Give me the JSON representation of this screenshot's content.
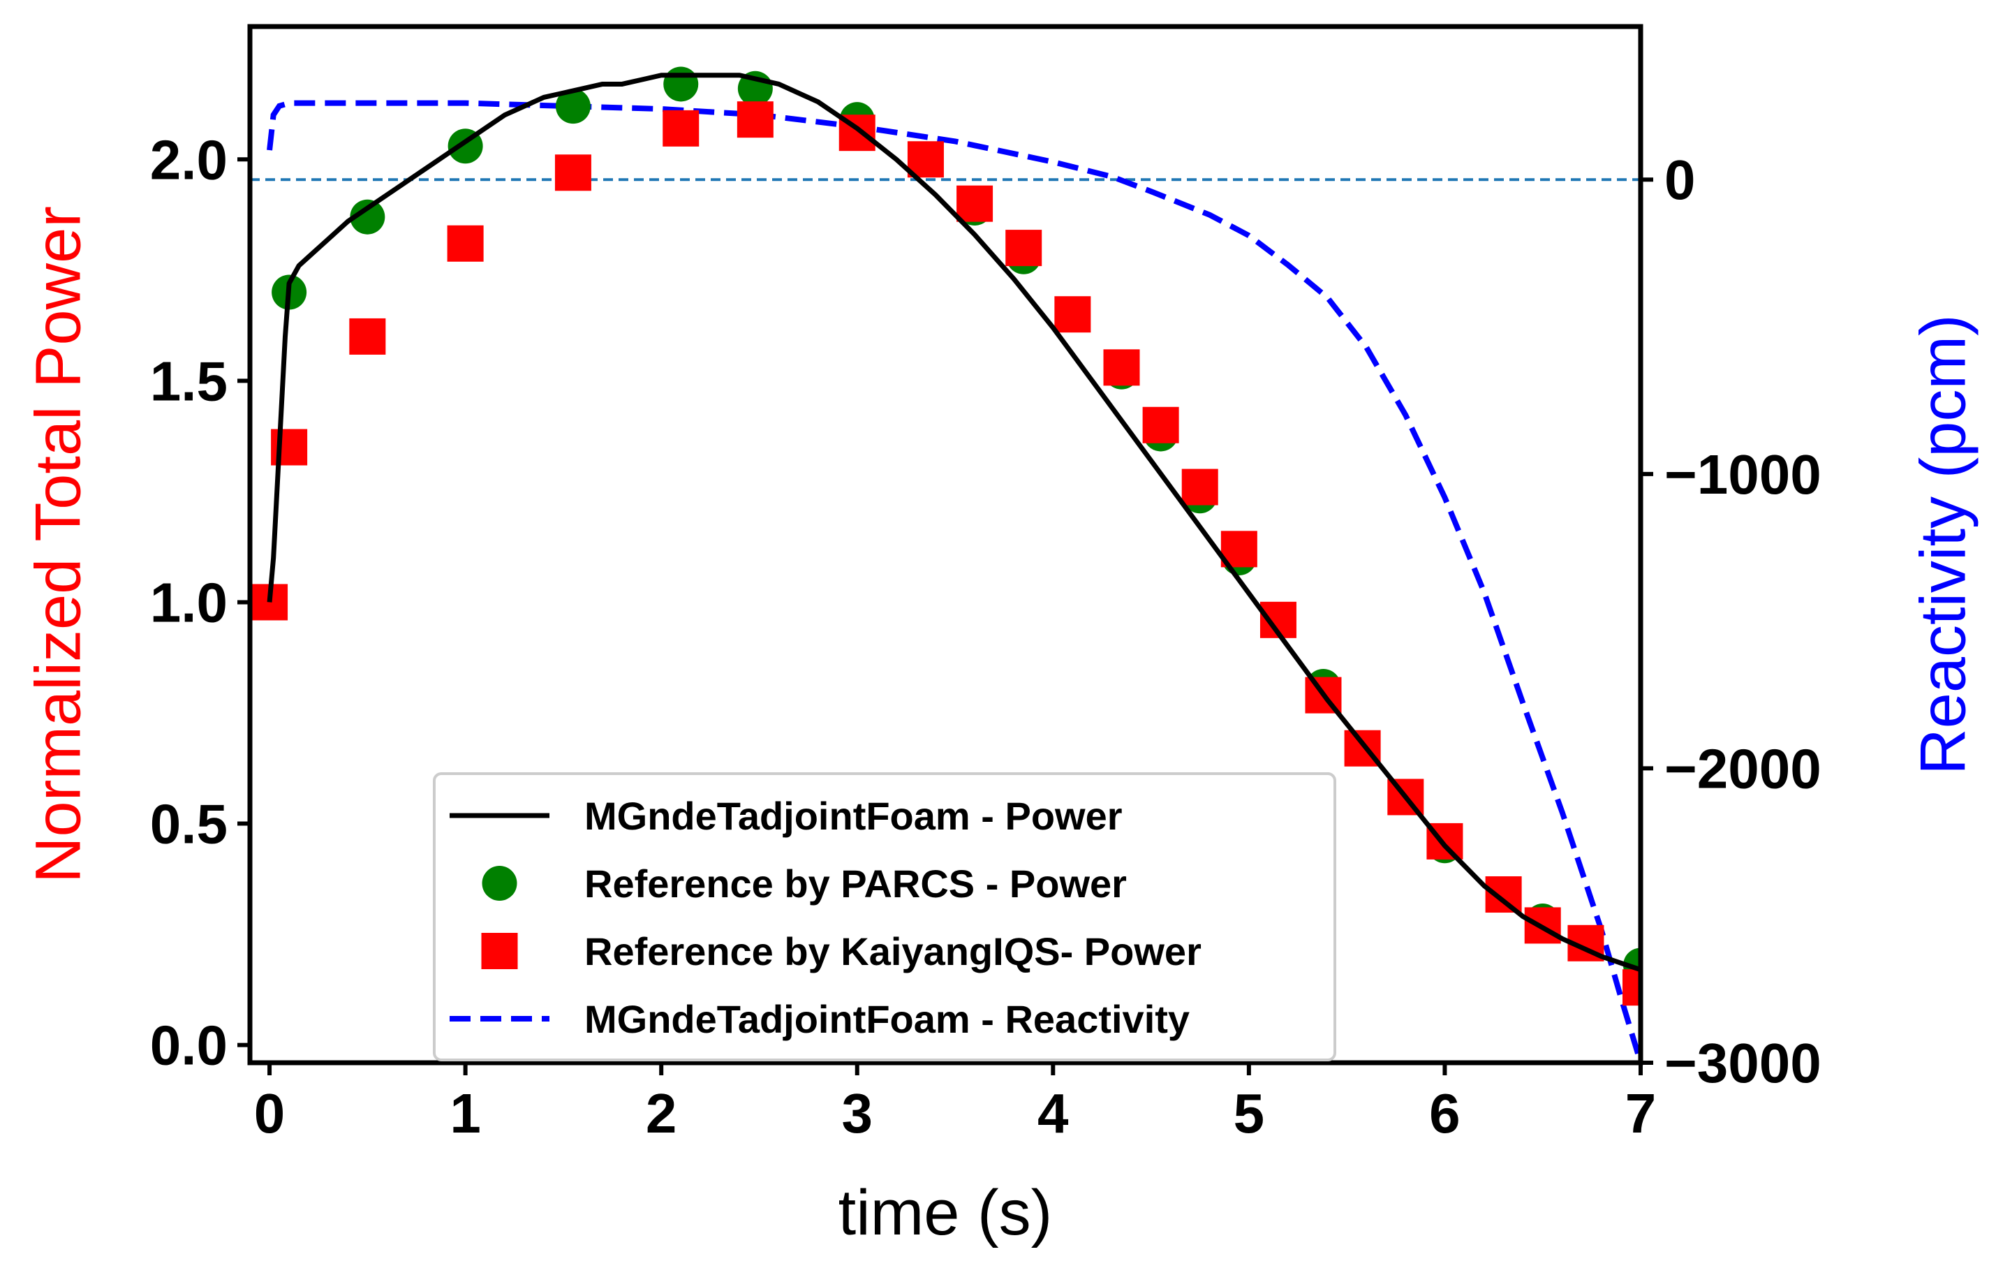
{
  "chart_data": {
    "type": "line",
    "xlabel": "time (s)",
    "ylabel_left": "Normalized Total Power",
    "ylabel_right": "Reactivity (pcm)",
    "xlim": [
      -0.1,
      7
    ],
    "ylim_left": [
      -0.04,
      2.3
    ],
    "ylim_right": [
      -3000,
      520
    ],
    "x_ticks": [
      "0",
      "1",
      "2",
      "3",
      "4",
      "5",
      "6",
      "7"
    ],
    "y_left_ticks": [
      "0.0",
      "0.5",
      "1.0",
      "1.5",
      "2.0"
    ],
    "y_right_ticks": [
      "0",
      "−1000",
      "−2000",
      "−3000"
    ],
    "legend_position": "lower-center",
    "colors": {
      "power_line": "#000000",
      "parcs": "#008000",
      "kaiyang": "#ff0000",
      "reactivity": "#0000ff",
      "zero_line": "#1f77b4",
      "left_label": "#ff0000",
      "right_label": "#0000ff"
    },
    "series": [
      {
        "name": "MGndeTadjointFoam - Power",
        "style": "solid-line",
        "axis": "left",
        "x": [
          0.0,
          0.02,
          0.05,
          0.08,
          0.1,
          0.15,
          0.2,
          0.3,
          0.4,
          0.5,
          0.6,
          0.7,
          0.8,
          0.9,
          1.0,
          1.1,
          1.2,
          1.3,
          1.4,
          1.5,
          1.6,
          1.7,
          1.8,
          1.9,
          2.0,
          2.1,
          2.2,
          2.3,
          2.4,
          2.5,
          2.6,
          2.7,
          2.8,
          2.9,
          3.0,
          3.2,
          3.4,
          3.6,
          3.8,
          4.0,
          4.2,
          4.4,
          4.6,
          4.8,
          5.0,
          5.2,
          5.4,
          5.6,
          5.8,
          6.0,
          6.2,
          6.4,
          6.6,
          6.8,
          7.0
        ],
        "y": [
          1.0,
          1.1,
          1.35,
          1.6,
          1.72,
          1.76,
          1.78,
          1.82,
          1.86,
          1.89,
          1.92,
          1.95,
          1.98,
          2.01,
          2.04,
          2.07,
          2.1,
          2.12,
          2.14,
          2.15,
          2.16,
          2.17,
          2.17,
          2.18,
          2.19,
          2.19,
          2.19,
          2.19,
          2.19,
          2.18,
          2.17,
          2.15,
          2.13,
          2.1,
          2.07,
          2.0,
          1.92,
          1.83,
          1.73,
          1.62,
          1.5,
          1.38,
          1.26,
          1.14,
          1.02,
          0.9,
          0.78,
          0.67,
          0.56,
          0.45,
          0.36,
          0.29,
          0.24,
          0.2,
          0.17
        ]
      },
      {
        "name": "Reference by PARCS - Power",
        "style": "circle-markers",
        "axis": "left",
        "x": [
          0.1,
          0.5,
          1.0,
          1.55,
          2.1,
          2.48,
          3.0,
          3.6,
          3.85,
          4.35,
          4.55,
          4.75,
          4.95,
          5.38,
          5.58,
          6.0,
          6.5,
          6.72,
          7.0
        ],
        "y": [
          1.7,
          1.87,
          2.03,
          2.12,
          2.17,
          2.16,
          2.09,
          1.89,
          1.78,
          1.52,
          1.38,
          1.24,
          1.1,
          0.81,
          0.67,
          0.45,
          0.28,
          0.23,
          0.18
        ]
      },
      {
        "name": "Reference by KaiyangIQS- Power",
        "style": "square-markers",
        "axis": "left",
        "x": [
          0.0,
          0.1,
          0.5,
          1.0,
          1.55,
          2.1,
          2.48,
          3.0,
          3.35,
          3.6,
          3.85,
          4.1,
          4.35,
          4.55,
          4.75,
          4.95,
          5.15,
          5.38,
          5.58,
          5.8,
          6.0,
          6.3,
          6.5,
          6.72,
          7.0
        ],
        "y": [
          1.0,
          1.35,
          1.6,
          1.81,
          1.97,
          2.07,
          2.09,
          2.06,
          2.0,
          1.9,
          1.8,
          1.65,
          1.53,
          1.4,
          1.26,
          1.12,
          0.96,
          0.79,
          0.67,
          0.56,
          0.46,
          0.34,
          0.27,
          0.23,
          0.13
        ]
      },
      {
        "name": "MGndeTadjointFoam - Reactivity",
        "style": "dashed-line",
        "axis": "right",
        "x": [
          0.0,
          0.02,
          0.05,
          0.1,
          0.2,
          0.5,
          1.0,
          1.5,
          2.0,
          2.5,
          3.0,
          3.5,
          4.0,
          4.3,
          4.5,
          4.8,
          5.0,
          5.2,
          5.4,
          5.6,
          5.8,
          6.0,
          6.2,
          6.4,
          6.6,
          6.8,
          6.9,
          7.0
        ],
        "y": [
          100,
          220,
          250,
          260,
          260,
          260,
          260,
          250,
          240,
          220,
          180,
          130,
          60,
          10,
          -40,
          -120,
          -190,
          -290,
          -400,
          -570,
          -800,
          -1080,
          -1400,
          -1780,
          -2150,
          -2550,
          -2780,
          -3000
        ]
      }
    ]
  }
}
